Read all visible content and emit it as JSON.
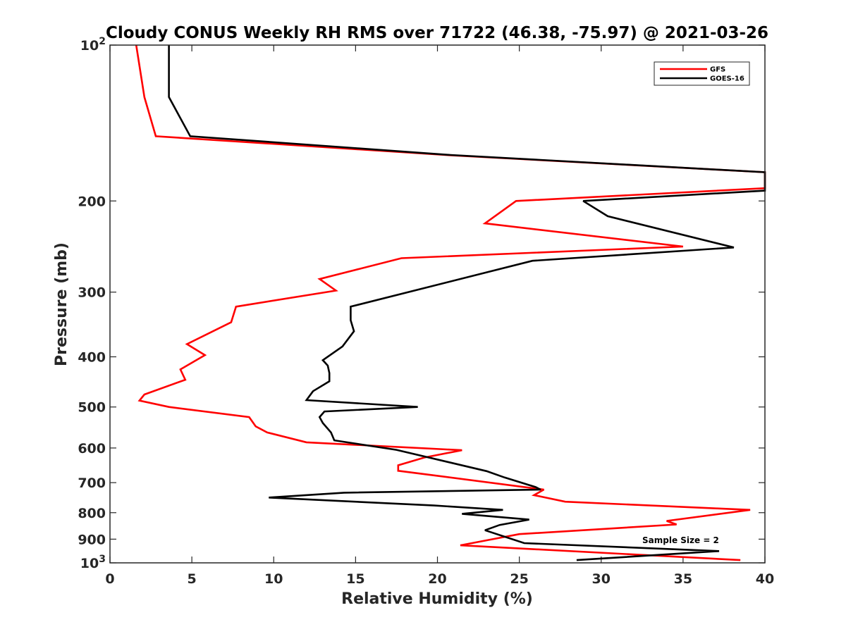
{
  "chart_data": {
    "type": "line",
    "title": "Cloudy CONUS Weekly RH RMS over 71722 (46.38, -75.97) @ 2021-03-26",
    "xlabel": "Relative Humidity (%)",
    "ylabel": "Pressure (mb)",
    "xlim": [
      0,
      40
    ],
    "ylim": [
      100,
      1000
    ],
    "yscale": "log",
    "y_reversed": true,
    "x_ticks": [
      0,
      5,
      10,
      15,
      20,
      25,
      30,
      35,
      40
    ],
    "x_tick_labels": [
      "0",
      "5",
      "10",
      "15",
      "20",
      "25",
      "30",
      "35",
      "40"
    ],
    "y_ticks": [
      100,
      200,
      300,
      400,
      500,
      600,
      700,
      800,
      900,
      1000
    ],
    "y_tick_labels": [
      {
        "base": "10",
        "exp": "2"
      },
      {
        "base": "200"
      },
      {
        "base": "300"
      },
      {
        "base": "400"
      },
      {
        "base": "500"
      },
      {
        "base": "600"
      },
      {
        "base": "700"
      },
      {
        "base": "800"
      },
      {
        "base": "900"
      },
      {
        "base": "10",
        "exp": "3"
      }
    ],
    "grid": false,
    "legend_position": "top-right",
    "annotation": "Sample Size = 2",
    "series": [
      {
        "name": "GFS",
        "color": "#ff0000",
        "points": [
          [
            1.6,
            100
          ],
          [
            2.1,
            126
          ],
          [
            2.8,
            150
          ],
          [
            20.5,
            163
          ],
          [
            40,
            176
          ],
          [
            40,
            189
          ],
          [
            24.8,
            200
          ],
          [
            22.9,
            221
          ],
          [
            35.0,
            245
          ],
          [
            17.8,
            258
          ],
          [
            12.8,
            283
          ],
          [
            13.8,
            298
          ],
          [
            7.7,
            320
          ],
          [
            7.4,
            343
          ],
          [
            4.7,
            378
          ],
          [
            5.8,
            397
          ],
          [
            4.3,
            423
          ],
          [
            4.6,
            443
          ],
          [
            2.1,
            473
          ],
          [
            1.8,
            486
          ],
          [
            3.6,
            500
          ],
          [
            8.5,
            523
          ],
          [
            8.9,
            545
          ],
          [
            9.6,
            560
          ],
          [
            12.0,
            585
          ],
          [
            21.5,
            606
          ],
          [
            19.2,
            626
          ],
          [
            17.6,
            648
          ],
          [
            17.6,
            664
          ],
          [
            20.0,
            679
          ],
          [
            26.5,
            722
          ],
          [
            25.9,
            740
          ],
          [
            27.8,
            762
          ],
          [
            37.0,
            785
          ],
          [
            39.1,
            790
          ],
          [
            34.0,
            830
          ],
          [
            34.6,
            843
          ],
          [
            25.0,
            880
          ],
          [
            21.4,
            925
          ],
          [
            38.5,
            988
          ]
        ]
      },
      {
        "name": "GOES-16",
        "color": "#000000",
        "points": [
          [
            3.6,
            100
          ],
          [
            3.6,
            126
          ],
          [
            4.9,
            150
          ],
          [
            20.8,
            163
          ],
          [
            40,
            176
          ],
          [
            40,
            191
          ],
          [
            28.9,
            200
          ],
          [
            30.4,
            214
          ],
          [
            38.1,
            246
          ],
          [
            25.8,
            261
          ],
          [
            14.7,
            320
          ],
          [
            14.7,
            340
          ],
          [
            14.9,
            357
          ],
          [
            14.2,
            382
          ],
          [
            13.0,
            406
          ],
          [
            13.3,
            416
          ],
          [
            13.4,
            430
          ],
          [
            13.4,
            446
          ],
          [
            12.4,
            466
          ],
          [
            12.0,
            485
          ],
          [
            18.8,
            500
          ],
          [
            13.1,
            510
          ],
          [
            12.8,
            523
          ],
          [
            13.0,
            537
          ],
          [
            13.5,
            560
          ],
          [
            13.7,
            580
          ],
          [
            17.5,
            605
          ],
          [
            23.0,
            665
          ],
          [
            24.1,
            684
          ],
          [
            26.0,
            714
          ],
          [
            26.3,
            722
          ],
          [
            14.3,
            732
          ],
          [
            9.7,
            748
          ],
          [
            19.8,
            775
          ],
          [
            24.0,
            790
          ],
          [
            21.5,
            804
          ],
          [
            25.6,
            825
          ],
          [
            23.8,
            845
          ],
          [
            22.9,
            865
          ],
          [
            25.3,
            916
          ],
          [
            37.2,
            949
          ],
          [
            28.5,
            988
          ]
        ]
      }
    ]
  }
}
